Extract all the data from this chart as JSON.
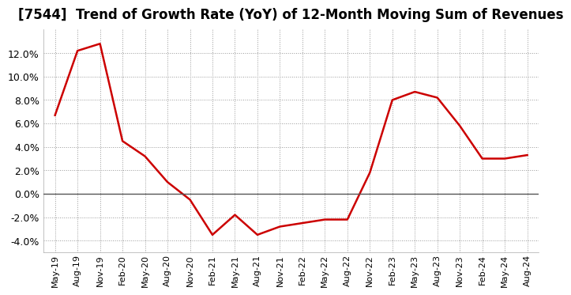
{
  "title": "[7544]  Trend of Growth Rate (YoY) of 12-Month Moving Sum of Revenues",
  "title_fontsize": 12,
  "line_color": "#cc0000",
  "line_width": 1.8,
  "background_color": "#ffffff",
  "plot_bg_color": "#ffffff",
  "grid_color": "#999999",
  "ylim": [
    -0.05,
    0.14
  ],
  "yticks": [
    -0.04,
    -0.02,
    0.0,
    0.02,
    0.04,
    0.06,
    0.08,
    0.1,
    0.12
  ],
  "values": [
    0.067,
    0.122,
    0.128,
    0.045,
    0.032,
    0.01,
    -0.005,
    -0.035,
    -0.018,
    -0.035,
    -0.028,
    -0.025,
    -0.022,
    -0.022,
    0.018,
    0.08,
    0.087,
    0.082,
    0.058,
    0.03,
    0.03,
    0.033
  ],
  "xtick_labels": [
    "May-19",
    "Aug-19",
    "Nov-19",
    "Feb-20",
    "May-20",
    "Aug-20",
    "Nov-20",
    "Feb-21",
    "May-21",
    "Aug-21",
    "Nov-21",
    "Feb-22",
    "May-22",
    "Aug-22",
    "Nov-22",
    "Feb-23",
    "May-23",
    "Aug-23",
    "Nov-23",
    "Feb-24",
    "May-24",
    "Aug-24"
  ]
}
